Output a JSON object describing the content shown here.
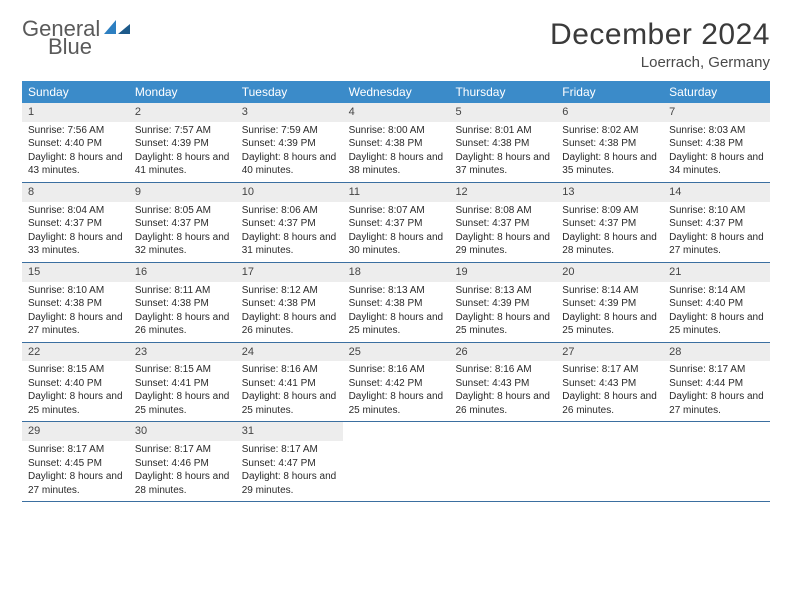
{
  "brand": {
    "word1": "General",
    "word2": "Blue"
  },
  "title": "December 2024",
  "location": "Loerrach, Germany",
  "colors": {
    "header_bg": "#3b8bc9",
    "header_text": "#ffffff",
    "daynum_bg": "#ededed",
    "rule": "#3b6fa0",
    "logo_gray": "#5a5a5a",
    "logo_blue": "#2d7fc1"
  },
  "weekdays": [
    "Sunday",
    "Monday",
    "Tuesday",
    "Wednesday",
    "Thursday",
    "Friday",
    "Saturday"
  ],
  "weeks": [
    [
      {
        "n": "1",
        "sr": "7:56 AM",
        "ss": "4:40 PM",
        "dl": "8 hours and 43 minutes."
      },
      {
        "n": "2",
        "sr": "7:57 AM",
        "ss": "4:39 PM",
        "dl": "8 hours and 41 minutes."
      },
      {
        "n": "3",
        "sr": "7:59 AM",
        "ss": "4:39 PM",
        "dl": "8 hours and 40 minutes."
      },
      {
        "n": "4",
        "sr": "8:00 AM",
        "ss": "4:38 PM",
        "dl": "8 hours and 38 minutes."
      },
      {
        "n": "5",
        "sr": "8:01 AM",
        "ss": "4:38 PM",
        "dl": "8 hours and 37 minutes."
      },
      {
        "n": "6",
        "sr": "8:02 AM",
        "ss": "4:38 PM",
        "dl": "8 hours and 35 minutes."
      },
      {
        "n": "7",
        "sr": "8:03 AM",
        "ss": "4:38 PM",
        "dl": "8 hours and 34 minutes."
      }
    ],
    [
      {
        "n": "8",
        "sr": "8:04 AM",
        "ss": "4:37 PM",
        "dl": "8 hours and 33 minutes."
      },
      {
        "n": "9",
        "sr": "8:05 AM",
        "ss": "4:37 PM",
        "dl": "8 hours and 32 minutes."
      },
      {
        "n": "10",
        "sr": "8:06 AM",
        "ss": "4:37 PM",
        "dl": "8 hours and 31 minutes."
      },
      {
        "n": "11",
        "sr": "8:07 AM",
        "ss": "4:37 PM",
        "dl": "8 hours and 30 minutes."
      },
      {
        "n": "12",
        "sr": "8:08 AM",
        "ss": "4:37 PM",
        "dl": "8 hours and 29 minutes."
      },
      {
        "n": "13",
        "sr": "8:09 AM",
        "ss": "4:37 PM",
        "dl": "8 hours and 28 minutes."
      },
      {
        "n": "14",
        "sr": "8:10 AM",
        "ss": "4:37 PM",
        "dl": "8 hours and 27 minutes."
      }
    ],
    [
      {
        "n": "15",
        "sr": "8:10 AM",
        "ss": "4:38 PM",
        "dl": "8 hours and 27 minutes."
      },
      {
        "n": "16",
        "sr": "8:11 AM",
        "ss": "4:38 PM",
        "dl": "8 hours and 26 minutes."
      },
      {
        "n": "17",
        "sr": "8:12 AM",
        "ss": "4:38 PM",
        "dl": "8 hours and 26 minutes."
      },
      {
        "n": "18",
        "sr": "8:13 AM",
        "ss": "4:38 PM",
        "dl": "8 hours and 25 minutes."
      },
      {
        "n": "19",
        "sr": "8:13 AM",
        "ss": "4:39 PM",
        "dl": "8 hours and 25 minutes."
      },
      {
        "n": "20",
        "sr": "8:14 AM",
        "ss": "4:39 PM",
        "dl": "8 hours and 25 minutes."
      },
      {
        "n": "21",
        "sr": "8:14 AM",
        "ss": "4:40 PM",
        "dl": "8 hours and 25 minutes."
      }
    ],
    [
      {
        "n": "22",
        "sr": "8:15 AM",
        "ss": "4:40 PM",
        "dl": "8 hours and 25 minutes."
      },
      {
        "n": "23",
        "sr": "8:15 AM",
        "ss": "4:41 PM",
        "dl": "8 hours and 25 minutes."
      },
      {
        "n": "24",
        "sr": "8:16 AM",
        "ss": "4:41 PM",
        "dl": "8 hours and 25 minutes."
      },
      {
        "n": "25",
        "sr": "8:16 AM",
        "ss": "4:42 PM",
        "dl": "8 hours and 25 minutes."
      },
      {
        "n": "26",
        "sr": "8:16 AM",
        "ss": "4:43 PM",
        "dl": "8 hours and 26 minutes."
      },
      {
        "n": "27",
        "sr": "8:17 AM",
        "ss": "4:43 PM",
        "dl": "8 hours and 26 minutes."
      },
      {
        "n": "28",
        "sr": "8:17 AM",
        "ss": "4:44 PM",
        "dl": "8 hours and 27 minutes."
      }
    ],
    [
      {
        "n": "29",
        "sr": "8:17 AM",
        "ss": "4:45 PM",
        "dl": "8 hours and 27 minutes."
      },
      {
        "n": "30",
        "sr": "8:17 AM",
        "ss": "4:46 PM",
        "dl": "8 hours and 28 minutes."
      },
      {
        "n": "31",
        "sr": "8:17 AM",
        "ss": "4:47 PM",
        "dl": "8 hours and 29 minutes."
      },
      null,
      null,
      null,
      null
    ]
  ],
  "labels": {
    "sunrise": "Sunrise: ",
    "sunset": "Sunset: ",
    "daylight": "Daylight: "
  }
}
